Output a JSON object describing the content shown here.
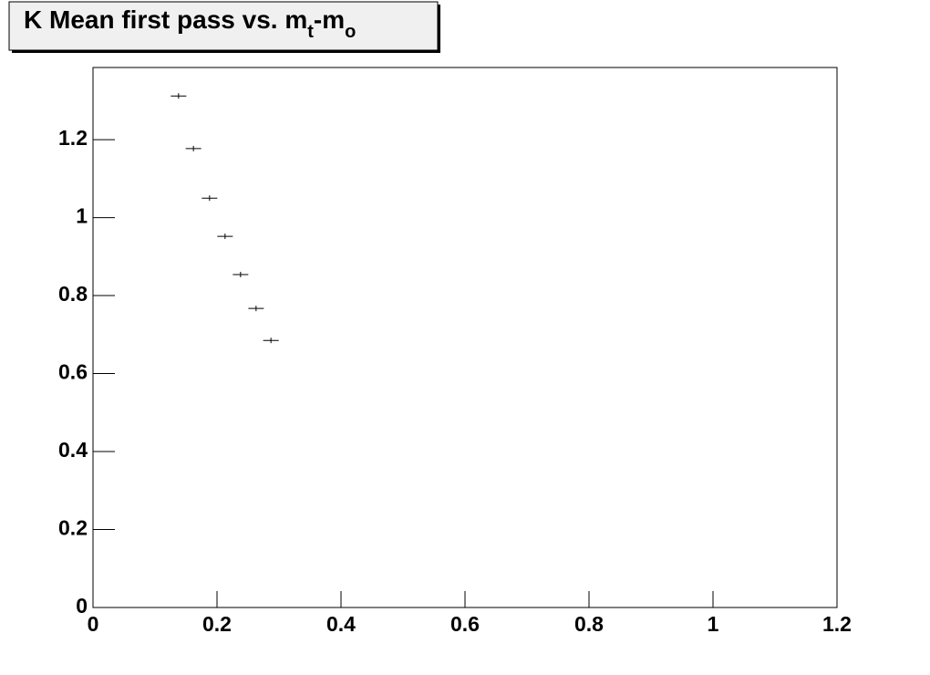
{
  "chart_data": {
    "type": "scatter",
    "title": [
      {
        "text": "K Mean first pass vs. m"
      },
      {
        "text": "t",
        "subscript": true
      },
      {
        "text": "-m"
      },
      {
        "text": "o",
        "subscript": true
      }
    ],
    "x": [
      0.138,
      0.162,
      0.188,
      0.213,
      0.238,
      0.263,
      0.287
    ],
    "x_errors": [
      0.0125,
      0.0125,
      0.0125,
      0.0125,
      0.0125,
      0.0125,
      0.0125
    ],
    "values": [
      1.312,
      1.177,
      1.05,
      0.952,
      0.854,
      0.767,
      0.685
    ],
    "color": "#000000",
    "xlim": [
      0,
      1.2
    ],
    "xticks": [
      0,
      0.2,
      0.4,
      0.6,
      0.8,
      1,
      1.2
    ],
    "ylim": [
      0,
      1.385
    ],
    "yticks": [
      0,
      0.2,
      0.4,
      0.6,
      0.8,
      1,
      1.2
    ]
  }
}
